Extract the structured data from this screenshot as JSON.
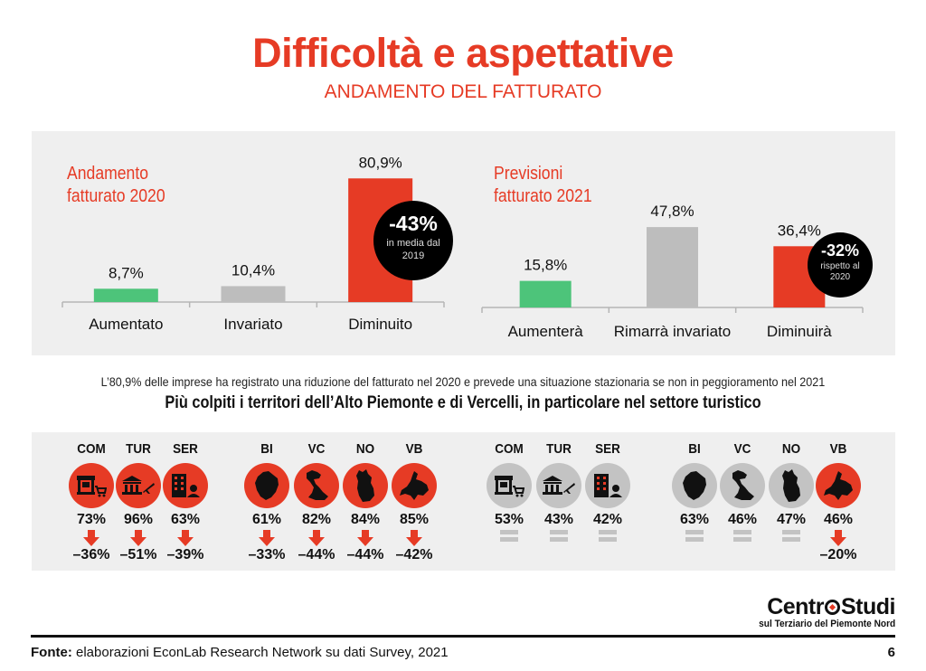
{
  "header": {
    "title": "Difficoltà e aspettative",
    "subtitle": "ANDAMENTO DEL FATTURATO"
  },
  "chart_data": [
    {
      "type": "bar",
      "title": "Andamento fatturato 2020",
      "title_lines": [
        "Andamento",
        "fatturato 2020"
      ],
      "categories": [
        "Aumentato",
        "Invariato",
        "Diminuito"
      ],
      "values": [
        8.7,
        10.4,
        80.9
      ],
      "value_labels": [
        "8,7%",
        "10,4%",
        "80,9%"
      ],
      "colors": [
        "#4dc47a",
        "#bdbdbd",
        "#e63b25"
      ],
      "ylim": [
        0,
        100
      ],
      "grid": false,
      "callout": {
        "value": "-43%",
        "line1": "in media dal",
        "line2": "2019"
      }
    },
    {
      "type": "bar",
      "title": "Previsioni fatturato 2021",
      "title_lines": [
        "Previsioni",
        "fatturato 2021"
      ],
      "categories": [
        "Aumenterà",
        "Rimarrà invariato",
        "Diminuirà"
      ],
      "values": [
        15.8,
        47.8,
        36.4
      ],
      "value_labels": [
        "15,8%",
        "47,8%",
        "36,4%"
      ],
      "colors": [
        "#4dc47a",
        "#bdbdbd",
        "#e63b25"
      ],
      "ylim": [
        0,
        100
      ],
      "grid": false,
      "callout": {
        "value": "-32%",
        "line1": "rispetto al",
        "line2": "2020"
      }
    }
  ],
  "note": "L’80,9% delle imprese ha registrato una riduzione del fatturato nel 2020 e prevede una situazione stazionaria se non in peggioramento nel 2021",
  "headline": "Più colpiti i territori dell’Alto Piemonte e di Vercelli, in particolare nel settore turistico",
  "breakdown_2020": [
    {
      "label": "COM",
      "icon": "shop-cart-icon",
      "pct": "73%",
      "trend": "down",
      "delta": "–36%"
    },
    {
      "label": "TUR",
      "icon": "museum-plane-icon",
      "pct": "96%",
      "trend": "down",
      "delta": "–51%"
    },
    {
      "label": "SER",
      "icon": "building-person-icon",
      "pct": "63%",
      "trend": "down",
      "delta": "–39%"
    },
    {
      "label": "BI",
      "icon": "map-biella-icon",
      "pct": "61%",
      "trend": "down",
      "delta": "–33%"
    },
    {
      "label": "VC",
      "icon": "map-vercelli-icon",
      "pct": "82%",
      "trend": "down",
      "delta": "–44%"
    },
    {
      "label": "NO",
      "icon": "map-novara-icon",
      "pct": "84%",
      "trend": "down",
      "delta": "–44%"
    },
    {
      "label": "VB",
      "icon": "map-vco-icon",
      "pct": "85%",
      "trend": "down",
      "delta": "–42%"
    }
  ],
  "breakdown_2021": [
    {
      "label": "COM",
      "icon": "shop-cart-icon",
      "pct": "53%",
      "trend": "equal",
      "delta": ""
    },
    {
      "label": "TUR",
      "icon": "museum-plane-icon",
      "pct": "43%",
      "trend": "equal",
      "delta": ""
    },
    {
      "label": "SER",
      "icon": "building-person-icon",
      "pct": "42%",
      "trend": "equal",
      "delta": ""
    },
    {
      "label": "BI",
      "icon": "map-biella-icon",
      "pct": "63%",
      "trend": "equal",
      "delta": ""
    },
    {
      "label": "VC",
      "icon": "map-vercelli-icon",
      "pct": "46%",
      "trend": "equal",
      "delta": ""
    },
    {
      "label": "NO",
      "icon": "map-novara-icon",
      "pct": "47%",
      "trend": "equal",
      "delta": ""
    },
    {
      "label": "VB",
      "icon": "map-vco-icon",
      "pct": "46%",
      "trend": "down",
      "delta": "–20%"
    }
  ],
  "colors": {
    "accent": "#e63b25",
    "neutral": "#c3c3c3",
    "positive": "#4dc47a",
    "panel": "#efefef"
  },
  "logo": {
    "brand": "CentroStudi",
    "brand_a": "Centr",
    "brand_b": "Studi",
    "tagline": "sul Terziario del Piemonte Nord"
  },
  "footer": {
    "source_label": "Fonte:",
    "source_text": " elaborazioni EconLab Research Network su dati Survey, 2021",
    "page": "6"
  }
}
